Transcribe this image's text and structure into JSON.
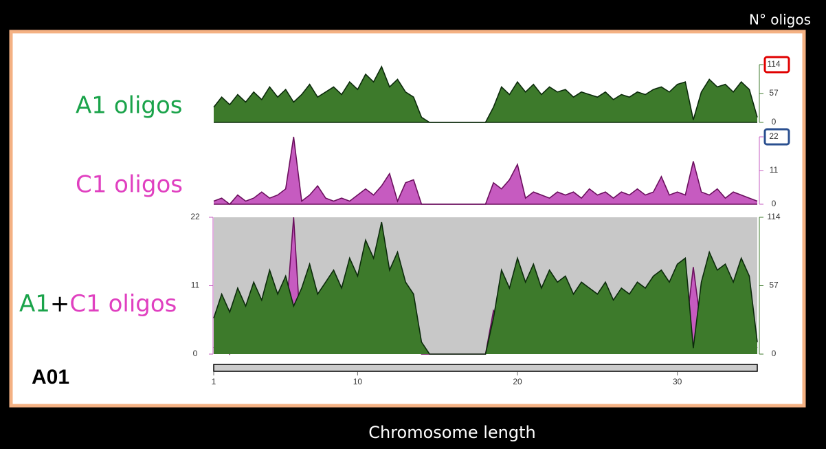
{
  "labels": {
    "n_oligos": "N° oligos",
    "x_axis": "Chromosome length",
    "chromosome": "A01"
  },
  "chart_data": [
    {
      "type": "area",
      "title": "A1 oligos",
      "color": "#3d7a2b",
      "x": [
        1,
        1.5,
        2,
        2.5,
        3,
        3.5,
        4,
        4.5,
        5,
        5.5,
        6,
        6.5,
        7,
        7.5,
        8,
        8.5,
        9,
        9.5,
        10,
        10.5,
        11,
        11.5,
        12,
        12.5,
        13,
        13.5,
        14,
        14.5,
        15,
        15.5,
        16,
        16.5,
        17,
        17.5,
        18,
        18.5,
        19,
        19.5,
        20,
        20.5,
        21,
        21.5,
        22,
        22.5,
        23,
        23.5,
        24,
        24.5,
        25,
        25.5,
        26,
        26.5,
        27,
        27.5,
        28,
        28.5,
        29,
        29.5,
        30,
        30.5,
        31,
        31.5,
        32,
        32.5,
        33,
        33.5,
        34,
        34.5,
        35
      ],
      "values": [
        30,
        50,
        35,
        55,
        40,
        60,
        45,
        70,
        50,
        65,
        40,
        55,
        75,
        50,
        60,
        70,
        55,
        80,
        65,
        95,
        80,
        110,
        70,
        85,
        60,
        50,
        10,
        0,
        0,
        0,
        0,
        0,
        0,
        0,
        0,
        30,
        70,
        55,
        80,
        60,
        75,
        55,
        70,
        60,
        65,
        50,
        60,
        55,
        50,
        60,
        45,
        55,
        50,
        60,
        55,
        65,
        70,
        60,
        75,
        80,
        5,
        60,
        85,
        70,
        75,
        60,
        80,
        65,
        10
      ],
      "xlim": [
        1,
        35
      ],
      "ylim": [
        0,
        114
      ],
      "yticks": [
        0,
        57,
        114
      ]
    },
    {
      "type": "area",
      "title": "C1 oligos",
      "color": "#c65bc0",
      "x": [
        1,
        1.5,
        2,
        2.5,
        3,
        3.5,
        4,
        4.5,
        5,
        5.5,
        6,
        6.5,
        7,
        7.5,
        8,
        8.5,
        9,
        9.5,
        10,
        10.5,
        11,
        11.5,
        12,
        12.5,
        13,
        13.5,
        14,
        14.5,
        15,
        15.5,
        16,
        16.5,
        17,
        17.5,
        18,
        18.5,
        19,
        19.5,
        20,
        20.5,
        21,
        21.5,
        22,
        22.5,
        23,
        23.5,
        24,
        24.5,
        25,
        25.5,
        26,
        26.5,
        27,
        27.5,
        28,
        28.5,
        29,
        29.5,
        30,
        30.5,
        31,
        31.5,
        32,
        32.5,
        33,
        33.5,
        34,
        34.5,
        35
      ],
      "values": [
        1,
        2,
        0,
        3,
        1,
        2,
        4,
        2,
        3,
        5,
        22,
        1,
        3,
        6,
        2,
        1,
        2,
        1,
        3,
        5,
        3,
        6,
        10,
        1,
        7,
        8,
        0,
        0,
        0,
        0,
        0,
        0,
        0,
        0,
        0,
        7,
        5,
        8,
        13,
        2,
        4,
        3,
        2,
        4,
        3,
        4,
        2,
        5,
        3,
        4,
        2,
        4,
        3,
        5,
        3,
        4,
        9,
        3,
        4,
        3,
        14,
        4,
        3,
        5,
        2,
        4,
        3,
        2,
        1
      ],
      "xlim": [
        1,
        35
      ],
      "ylim": [
        0,
        22
      ],
      "yticks": [
        0,
        11,
        22
      ]
    },
    {
      "type": "overlay",
      "title_parts": [
        "A1",
        "+",
        "C1 oligos"
      ],
      "background": "#c8c8c8",
      "xlim": [
        1,
        35
      ],
      "xticks": [
        1,
        10,
        20,
        30
      ],
      "ylim": [
        0,
        22
      ],
      "yticks": [
        0,
        11,
        22
      ],
      "y2lim": [
        0,
        114
      ],
      "y2ticks": [
        0,
        57,
        114
      ]
    }
  ]
}
